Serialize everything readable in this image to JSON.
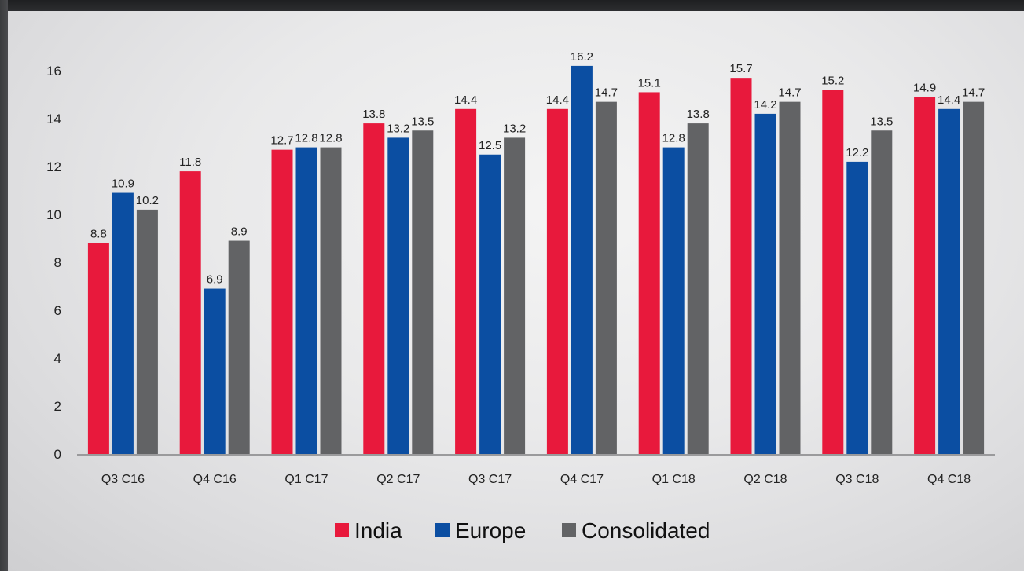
{
  "chart_data": {
    "type": "bar",
    "categories": [
      "Q3 C16",
      "Q4 C16",
      "Q1 C17",
      "Q2 C17",
      "Q3 C17",
      "Q4 C17",
      "Q1 C18",
      "Q2 C18",
      "Q3 C18",
      "Q4 C18"
    ],
    "series": [
      {
        "name": "India",
        "color": "#e8193c",
        "values": [
          8.8,
          11.8,
          12.7,
          13.8,
          14.4,
          14.4,
          15.1,
          15.7,
          15.2,
          14.9
        ]
      },
      {
        "name": "Europe",
        "color": "#0b4ea2",
        "values": [
          10.9,
          6.9,
          12.8,
          13.2,
          12.5,
          16.2,
          12.8,
          14.2,
          12.2,
          14.4
        ]
      },
      {
        "name": "Consolidated",
        "color": "#626365",
        "values": [
          10.2,
          8.9,
          12.8,
          13.5,
          13.2,
          14.7,
          13.8,
          14.7,
          13.5,
          14.7
        ]
      }
    ],
    "ylim": [
      0,
      16
    ],
    "yticks": [
      0,
      2,
      4,
      6,
      8,
      10,
      12,
      14,
      16
    ],
    "grid": false,
    "legend_position": "bottom-center",
    "title": "",
    "xlabel": "",
    "ylabel": ""
  }
}
